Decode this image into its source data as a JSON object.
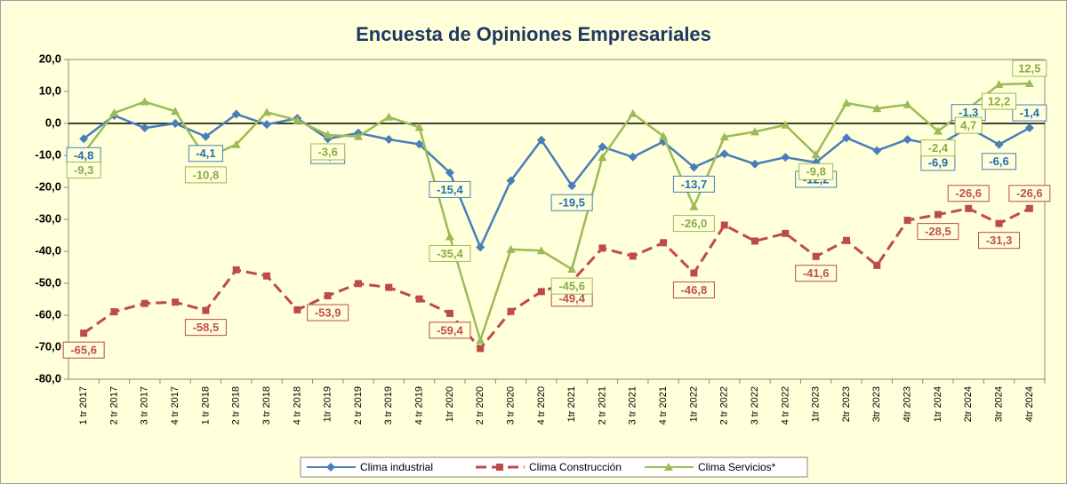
{
  "chart_data": {
    "type": "line",
    "title": "Encuesta de Opiniones Empresariales",
    "categories": [
      "1 tr 2017",
      "2 tr 2017",
      "3 tr 2017",
      "4 tr 2017",
      "1 tr 2018",
      "2 tr 2018",
      "3 tr 2018",
      "4 tr 2018",
      "1tr 2019",
      "2 tr 2019",
      "3 tr 2019",
      "4 tr 2019",
      "1tr 2020",
      "2 tr 2020",
      "3 tr 2020",
      "4 tr 2020",
      "1tr 2021",
      "2 tr 2021",
      "3 tr 2021",
      "4 tr 2021",
      "1tr 2022",
      "2 tr 2022",
      "3 tr 2022",
      "4 tr 2022",
      "1tr 2023",
      "2tr 2023",
      "3tr 2023",
      "4tr 2023",
      "1tr 2024",
      "2tr 2024",
      "3tr 2024",
      "4tr 2024"
    ],
    "series": [
      {
        "name": "Clima industrial",
        "color": "#4a7ebb",
        "label_color": "#1f6fb4",
        "marker": "diamond",
        "dash": false,
        "values": [
          -4.8,
          2.5,
          -1.4,
          0.0,
          -4.1,
          2.9,
          -0.3,
          1.6,
          -4.8,
          -3.0,
          -5.0,
          -6.5,
          -15.4,
          -38.7,
          -17.9,
          -5.2,
          -19.5,
          -7.3,
          -10.5,
          -5.7,
          -13.7,
          -9.5,
          -12.7,
          -10.6,
          -12.2,
          -4.5,
          -8.5,
          -5.0,
          -6.9,
          -1.3,
          -6.6,
          -1.4
        ],
        "value_labels": [
          "-4,8",
          null,
          null,
          null,
          "-4,1",
          null,
          null,
          null,
          "-4,8",
          null,
          null,
          null,
          "-15,4",
          null,
          null,
          null,
          "-19,5",
          null,
          null,
          null,
          "-13,7",
          null,
          null,
          null,
          "-12,2",
          null,
          null,
          null,
          "-6,9",
          "-1,3",
          "-6,6",
          "-1,4"
        ]
      },
      {
        "name": "Clima Construcción",
        "color": "#be4b48",
        "label_color": "#c0504d",
        "marker": "square",
        "dash": true,
        "values": [
          -65.6,
          -58.9,
          -56.3,
          -55.9,
          -58.5,
          -45.8,
          -47.7,
          -58.3,
          -53.9,
          -50.1,
          -51.3,
          -54.9,
          -59.4,
          -70.4,
          -58.8,
          -52.6,
          -49.4,
          -39.0,
          -41.5,
          -37.3,
          -46.8,
          -31.8,
          -36.8,
          -34.4,
          -41.6,
          -36.6,
          -44.4,
          -30.3,
          -28.5,
          -26.6,
          -31.3,
          -26.6
        ],
        "value_labels": [
          "-65,6",
          null,
          null,
          null,
          "-58,5",
          null,
          null,
          null,
          "-53,9",
          null,
          null,
          null,
          "-59,4",
          null,
          null,
          null,
          "-49,4",
          null,
          null,
          null,
          "-46,8",
          null,
          null,
          null,
          "-41,6",
          null,
          null,
          null,
          "-28,5",
          "-26,6",
          "-31,3",
          "-26,6"
        ]
      },
      {
        "name": "Clima Servicios*",
        "color": "#9bbb59",
        "label_color": "#8aab48",
        "marker": "triangle",
        "dash": false,
        "values": [
          -9.3,
          3.3,
          6.8,
          3.8,
          -10.8,
          -6.6,
          3.5,
          1.0,
          -3.6,
          -4.1,
          2.0,
          -1.2,
          -35.4,
          -67.8,
          -39.4,
          -39.8,
          -45.6,
          -10.6,
          3.1,
          -4.0,
          -26.0,
          -4.2,
          -2.6,
          -0.5,
          -9.8,
          6.4,
          4.7,
          5.9,
          -2.4,
          4.7,
          12.2,
          12.5
        ],
        "value_labels": [
          "-9,3",
          null,
          null,
          null,
          "-10,8",
          null,
          null,
          null,
          "-3,6",
          null,
          null,
          null,
          "-35,4",
          null,
          null,
          null,
          "-45,6",
          null,
          null,
          null,
          "-26,0",
          null,
          null,
          null,
          "-9,8",
          null,
          null,
          null,
          "-2,4",
          "4,7",
          "12,2",
          "12,5"
        ]
      }
    ],
    "ylim": [
      -80,
      20
    ],
    "yticks": [
      {
        "value": -80,
        "label": "-80,0"
      },
      {
        "value": -70,
        "label": "-70,0"
      },
      {
        "value": -60,
        "label": "-60,0"
      },
      {
        "value": -50,
        "label": "-50,0"
      },
      {
        "value": -40,
        "label": "-40,0"
      },
      {
        "value": -30,
        "label": "-30,0"
      },
      {
        "value": -20,
        "label": "-20,0"
      },
      {
        "value": -10,
        "label": "-10,0"
      },
      {
        "value": 0,
        "label": "0,0"
      },
      {
        "value": 10,
        "label": "10,0"
      },
      {
        "value": 20,
        "label": "20,0"
      }
    ],
    "legend": "bottom"
  }
}
